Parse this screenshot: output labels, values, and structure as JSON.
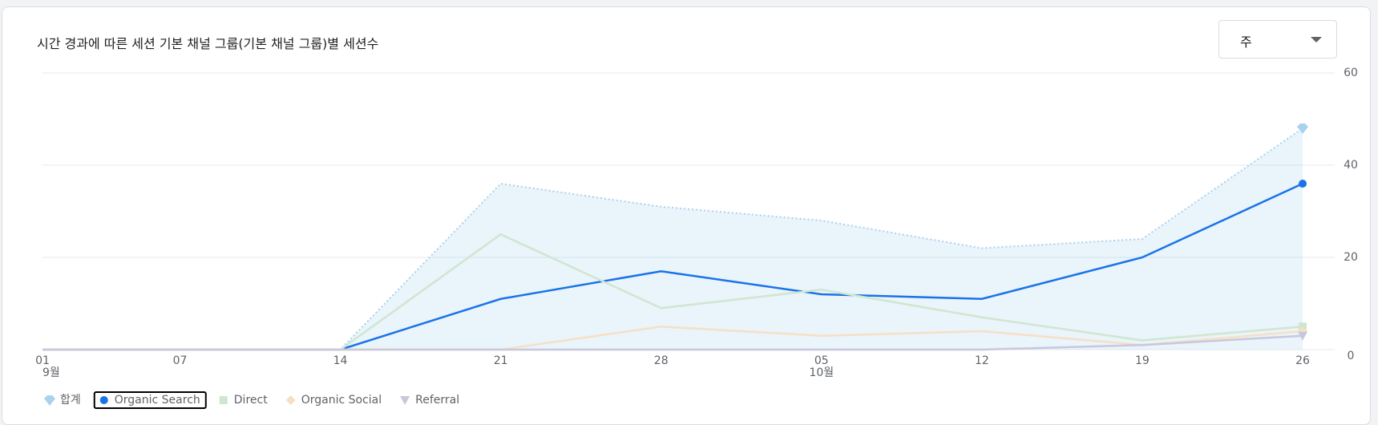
{
  "chart_data": {
    "type": "line",
    "title": "시간 경과에 따른 세션 기본 채널 그룹(기본 채널 그룹)별 세션수",
    "dropdown": "주",
    "categories": [
      "01",
      "07",
      "14",
      "21",
      "28",
      "05",
      "12",
      "19",
      "26"
    ],
    "months": [
      "9월",
      null,
      null,
      null,
      null,
      "10월",
      null,
      null,
      null
    ],
    "ylim": [
      0,
      60
    ],
    "yticks": [
      0,
      20,
      40,
      60
    ],
    "grid": true,
    "y_axis_side": "right",
    "series": [
      {
        "name": "합계",
        "color": "#a9d2ee",
        "style": "dotted-area",
        "marker": "drop",
        "values": [
          0,
          0,
          0,
          36,
          31,
          28,
          22,
          24,
          48
        ]
      },
      {
        "name": "Organic Search",
        "color": "#1a73e8",
        "style": "solid",
        "marker": "circle",
        "values": [
          0,
          0,
          0,
          11,
          17,
          12,
          11,
          20,
          36
        ]
      },
      {
        "name": "Direct",
        "color": "#cfe6cf",
        "style": "solid",
        "marker": "square",
        "values": [
          0,
          0,
          0,
          25,
          9,
          13,
          7,
          2,
          5
        ]
      },
      {
        "name": "Organic Social",
        "color": "#f7dfc4",
        "style": "solid",
        "marker": "diamond",
        "values": [
          0,
          0,
          0,
          0,
          5,
          3,
          4,
          1,
          4
        ]
      },
      {
        "name": "Referral",
        "color": "#c8c8dc",
        "style": "solid",
        "marker": "triangle",
        "values": [
          0,
          0,
          0,
          0,
          0,
          0,
          0,
          1,
          3
        ]
      }
    ]
  }
}
